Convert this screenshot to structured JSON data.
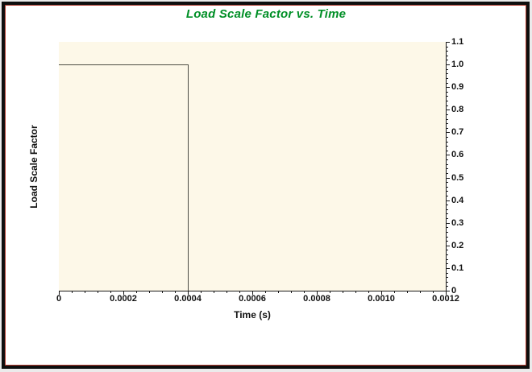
{
  "window": {
    "page_background": "#ebebeb",
    "frame_black": "#0e0e0e",
    "frame_red": "#b03a2e",
    "background": "#ffffff"
  },
  "chart_data": {
    "type": "line",
    "title": "Load Scale Factor vs. Time",
    "title_color": "#008f26",
    "xlabel": "Time (s)",
    "ylabel": "Load Scale Factor",
    "xlim": [
      0,
      0.0012
    ],
    "ylim": [
      0,
      1.1
    ],
    "x_tick_values": [
      0,
      0.0002,
      0.0004,
      0.0006,
      0.0008,
      0.001,
      0.0012
    ],
    "x_tick_labels": [
      "0",
      "0.0002",
      "0.0004",
      "0.0006",
      "0.0008",
      "0.0010",
      "0.0012"
    ],
    "x_minor_step": 4e-05,
    "y_tick_values": [
      0,
      0.1,
      0.2,
      0.3,
      0.4,
      0.5,
      0.6,
      0.7,
      0.8,
      0.9,
      1.0,
      1.1
    ],
    "y_tick_labels": [
      "0",
      "0.1",
      "0.2",
      "0.3",
      "0.4",
      "0.5",
      "0.6",
      "0.7",
      "0.8",
      "0.9",
      "1.0",
      "1.1"
    ],
    "y_minor_step": 0.02,
    "y_axis_side": "right",
    "grid": false,
    "legend": "none",
    "plot_background": "#fdf8e8",
    "line_color": "#4d4d45",
    "axis_color": "#1a1a1a",
    "series": [
      {
        "name": "Load Scale Factor",
        "points": [
          [
            0,
            1.0
          ],
          [
            0.0004,
            1.0
          ],
          [
            0.0004,
            0.0
          ]
        ]
      }
    ]
  }
}
